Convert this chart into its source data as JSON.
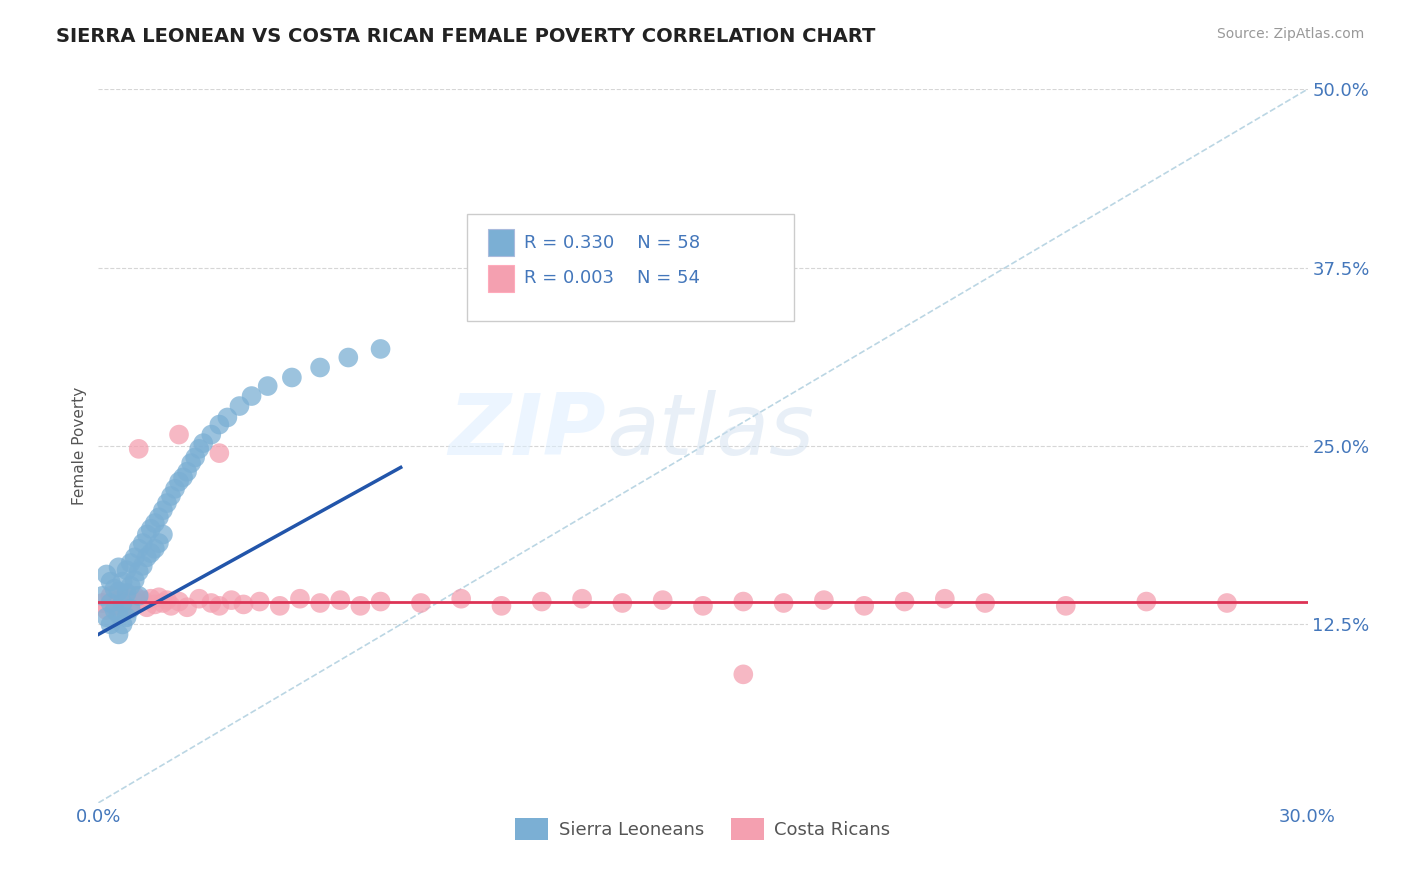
{
  "title": "SIERRA LEONEAN VS COSTA RICAN FEMALE POVERTY CORRELATION CHART",
  "source": "Source: ZipAtlas.com",
  "ylabel": "Female Poverty",
  "xlim": [
    0.0,
    0.3
  ],
  "ylim": [
    0.0,
    0.5
  ],
  "xticks": [
    0.0,
    0.3
  ],
  "xticklabels": [
    "0.0%",
    "30.0%"
  ],
  "yticks_right": [
    0.125,
    0.25,
    0.375,
    0.5
  ],
  "yticklabels_right": [
    "12.5%",
    "25.0%",
    "37.5%",
    "50.0%"
  ],
  "legend_label1": "Sierra Leoneans",
  "legend_label2": "Costa Ricans",
  "color_blue": "#7BAFD4",
  "color_pink": "#F4A0B0",
  "color_trend_blue": "#2255AA",
  "color_trend_red": "#DD3355",
  "color_diag": "#AACCDD",
  "background": "#FFFFFF",
  "tick_color": "#4477BB",
  "blue_scatter_x": [
    0.001,
    0.002,
    0.002,
    0.003,
    0.003,
    0.003,
    0.004,
    0.004,
    0.005,
    0.005,
    0.005,
    0.005,
    0.006,
    0.006,
    0.006,
    0.007,
    0.007,
    0.007,
    0.008,
    0.008,
    0.008,
    0.009,
    0.009,
    0.01,
    0.01,
    0.01,
    0.011,
    0.011,
    0.012,
    0.012,
    0.013,
    0.013,
    0.014,
    0.014,
    0.015,
    0.015,
    0.016,
    0.016,
    0.017,
    0.018,
    0.019,
    0.02,
    0.021,
    0.022,
    0.023,
    0.024,
    0.025,
    0.026,
    0.028,
    0.03,
    0.032,
    0.035,
    0.038,
    0.042,
    0.048,
    0.055,
    0.062,
    0.07
  ],
  "blue_scatter_y": [
    0.145,
    0.16,
    0.13,
    0.155,
    0.14,
    0.125,
    0.15,
    0.135,
    0.165,
    0.148,
    0.132,
    0.118,
    0.155,
    0.14,
    0.125,
    0.163,
    0.147,
    0.13,
    0.168,
    0.152,
    0.136,
    0.172,
    0.156,
    0.178,
    0.162,
    0.145,
    0.182,
    0.166,
    0.188,
    0.172,
    0.192,
    0.175,
    0.196,
    0.178,
    0.2,
    0.182,
    0.205,
    0.188,
    0.21,
    0.215,
    0.22,
    0.225,
    0.228,
    0.232,
    0.238,
    0.242,
    0.248,
    0.252,
    0.258,
    0.265,
    0.27,
    0.278,
    0.285,
    0.292,
    0.298,
    0.305,
    0.312,
    0.318
  ],
  "pink_scatter_x": [
    0.001,
    0.002,
    0.003,
    0.004,
    0.005,
    0.006,
    0.007,
    0.008,
    0.009,
    0.01,
    0.011,
    0.012,
    0.013,
    0.014,
    0.015,
    0.016,
    0.017,
    0.018,
    0.02,
    0.022,
    0.025,
    0.028,
    0.03,
    0.033,
    0.036,
    0.04,
    0.045,
    0.05,
    0.055,
    0.06,
    0.065,
    0.07,
    0.08,
    0.09,
    0.1,
    0.11,
    0.12,
    0.13,
    0.14,
    0.15,
    0.16,
    0.17,
    0.18,
    0.19,
    0.2,
    0.21,
    0.22,
    0.24,
    0.26,
    0.28,
    0.01,
    0.02,
    0.03,
    0.16
  ],
  "pink_scatter_y": [
    0.14,
    0.135,
    0.145,
    0.138,
    0.142,
    0.136,
    0.143,
    0.138,
    0.145,
    0.14,
    0.142,
    0.137,
    0.143,
    0.139,
    0.144,
    0.14,
    0.142,
    0.138,
    0.141,
    0.137,
    0.143,
    0.14,
    0.138,
    0.142,
    0.139,
    0.141,
    0.138,
    0.143,
    0.14,
    0.142,
    0.138,
    0.141,
    0.14,
    0.143,
    0.138,
    0.141,
    0.143,
    0.14,
    0.142,
    0.138,
    0.141,
    0.14,
    0.142,
    0.138,
    0.141,
    0.143,
    0.14,
    0.138,
    0.141,
    0.14,
    0.248,
    0.258,
    0.245,
    0.09
  ],
  "note_blue_r": "R = 0.330",
  "note_blue_n": "N = 58",
  "note_pink_r": "R = 0.003",
  "note_pink_n": "N = 54",
  "trend_blue_x0": 0.0,
  "trend_blue_y0": 0.118,
  "trend_blue_x1": 0.075,
  "trend_blue_y1": 0.235,
  "trend_pink_y": 0.1405
}
